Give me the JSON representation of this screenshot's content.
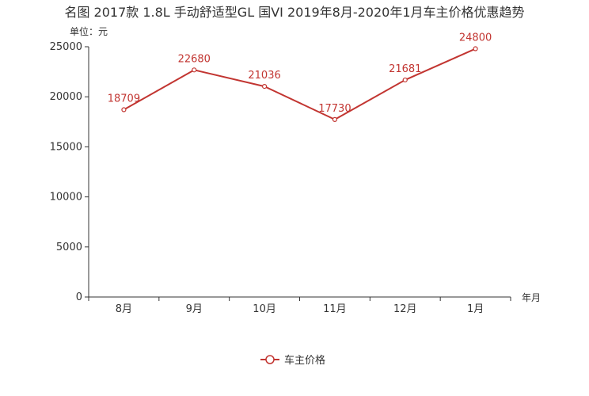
{
  "chart_data": {
    "type": "line",
    "title": "名图 2017款 1.8L 手动舒适型GL 国VI 2019年8月-2020年1月车主价格优惠趋势",
    "ylabel": "单位：元",
    "xlabel": "年月",
    "categories": [
      "8月",
      "9月",
      "10月",
      "11月",
      "12月",
      "1月"
    ],
    "ylim": [
      0,
      25000
    ],
    "yticks": [
      0,
      5000,
      10000,
      15000,
      20000,
      25000
    ],
    "series": [
      {
        "name": "车主价格",
        "values": [
          18709,
          22680,
          21036,
          17730,
          21681,
          24800
        ]
      }
    ],
    "colors": {
      "line": "#c23531",
      "axis": "#333333",
      "text": "#333333"
    },
    "legend": "bottom-center"
  }
}
